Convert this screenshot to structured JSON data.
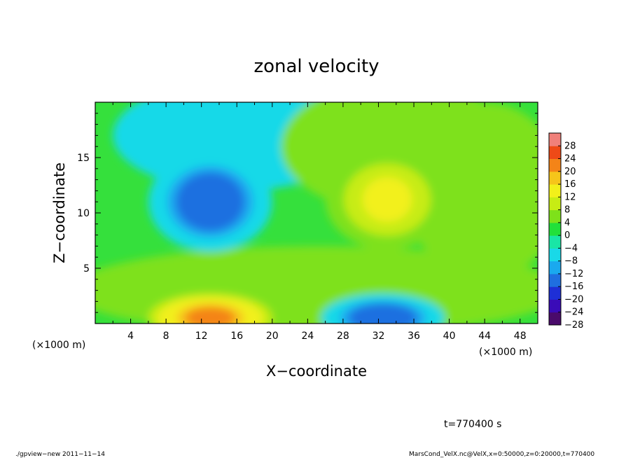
{
  "chart_data": {
    "type": "heatmap",
    "title": "zonal velocity",
    "xlabel": "X−coordinate",
    "ylabel": "Z−coordinate",
    "x_unit_label": "(×1000 m)",
    "y_unit_label": "(×1000 m)",
    "xlim": [
      0,
      50
    ],
    "ylim": [
      0,
      20
    ],
    "x_ticks": [
      "4",
      "8",
      "12",
      "16",
      "20",
      "24",
      "28",
      "32",
      "36",
      "40",
      "44",
      "48"
    ],
    "y_ticks": [
      "5",
      "10",
      "15"
    ],
    "colorbar": {
      "levels": [
        "28",
        "24",
        "20",
        "16",
        "12",
        "8",
        "4",
        "0",
        "−4",
        "−8",
        "−12",
        "−16",
        "−20",
        "−24",
        "−28"
      ],
      "range": [
        -30,
        30
      ],
      "colors": [
        "#4a0a6b",
        "#3a0bb8",
        "#1e2fd6",
        "#1f6fe0",
        "#1aa9ef",
        "#19d9e8",
        "#19e6a6",
        "#22e03a",
        "#7ee11a",
        "#c7ec14",
        "#f2f01a",
        "#f6c51a",
        "#f48418",
        "#ee4a17",
        "#f0807a"
      ]
    },
    "features": [
      {
        "kind": "min",
        "x": 13,
        "z": 11,
        "value": -18
      },
      {
        "kind": "max",
        "x": 33,
        "z": 11.2,
        "value": 11
      },
      {
        "kind": "max",
        "x": 13,
        "z": 0.5,
        "value": 20
      },
      {
        "kind": "min",
        "x": 32.5,
        "z": 0.5,
        "value": -18
      }
    ],
    "grid": false,
    "colorbar_position": "right"
  },
  "annotation": "t=770400 s",
  "footer": {
    "left": "./gpview−new  2011−11−14",
    "right": "MarsCond_VelX.nc@VelX,x=0:50000,z=0:20000,t=770400"
  }
}
